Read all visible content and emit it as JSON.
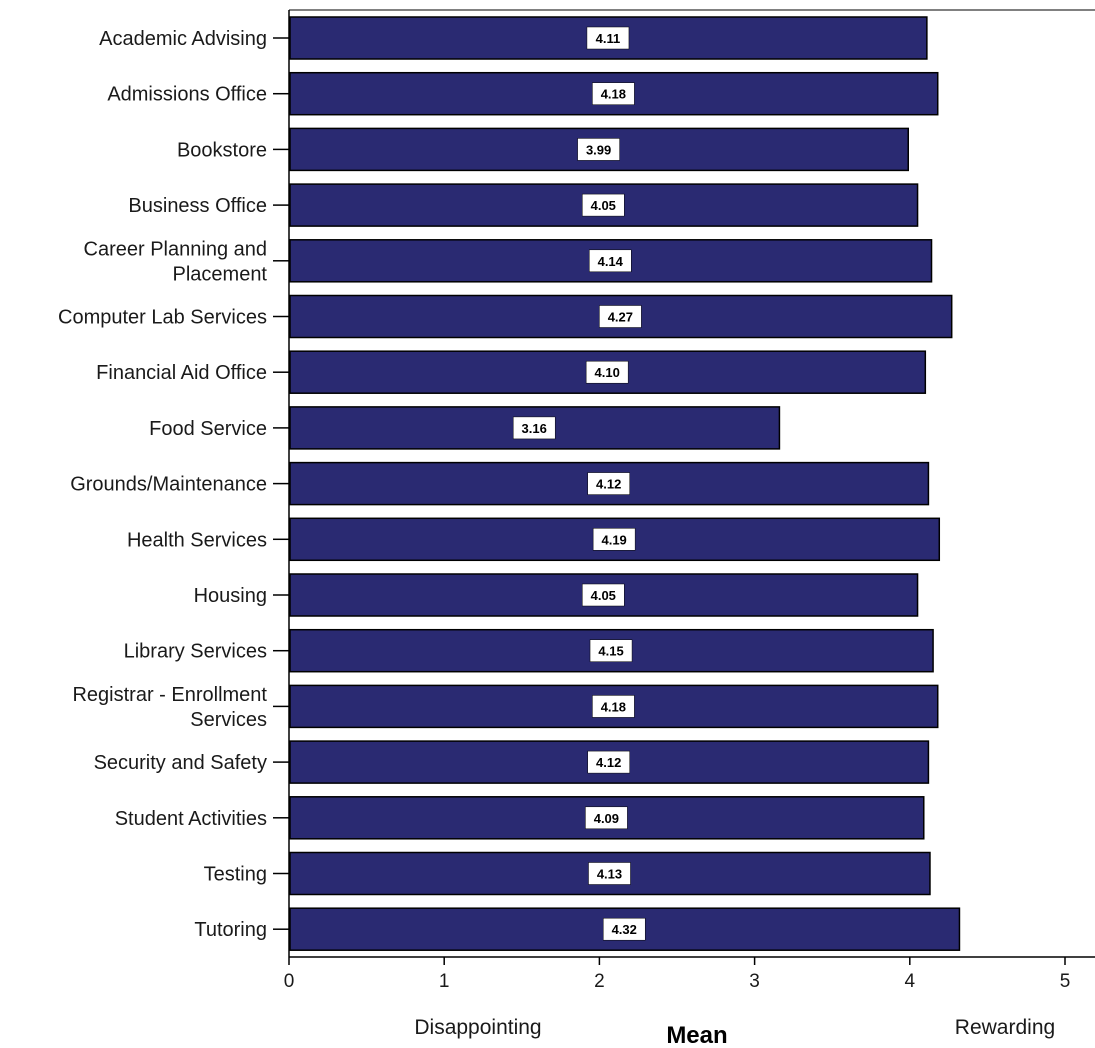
{
  "chart_data": {
    "type": "bar",
    "orientation": "horizontal",
    "categories": [
      [
        "Academic Advising"
      ],
      [
        "Admissions Office"
      ],
      [
        "Bookstore"
      ],
      [
        "Business Office"
      ],
      [
        "Career Planning and",
        "Placement"
      ],
      [
        "Computer Lab Services"
      ],
      [
        "Financial Aid Office"
      ],
      [
        "Food Service"
      ],
      [
        "Grounds/Maintenance"
      ],
      [
        "Health Services"
      ],
      [
        "Housing"
      ],
      [
        "Library Services"
      ],
      [
        "Registrar - Enrollment",
        "Services"
      ],
      [
        "Security and Safety"
      ],
      [
        "Student Activities"
      ],
      [
        "Testing"
      ],
      [
        "Tutoring"
      ]
    ],
    "values": [
      4.11,
      4.18,
      3.99,
      4.05,
      4.14,
      4.27,
      4.1,
      3.16,
      4.12,
      4.19,
      4.05,
      4.15,
      4.18,
      4.12,
      4.09,
      4.13,
      4.32
    ],
    "value_labels": [
      "4.11",
      "4.18",
      "3.99",
      "4.05",
      "4.14",
      "4.27",
      "4.10",
      "3.16",
      "4.12",
      "4.19",
      "4.05",
      "4.15",
      "4.18",
      "4.12",
      "4.09",
      "4.13",
      "4.32"
    ],
    "xlabel": "Mean",
    "x_left_label": "Disappointing",
    "x_right_label": "Rewarding",
    "xlim": [
      0,
      5
    ],
    "xticks": [
      0,
      1,
      2,
      3,
      4,
      5
    ],
    "grid": false,
    "bar_color": "#2a2a72",
    "bar_edge_color": "#000000"
  }
}
